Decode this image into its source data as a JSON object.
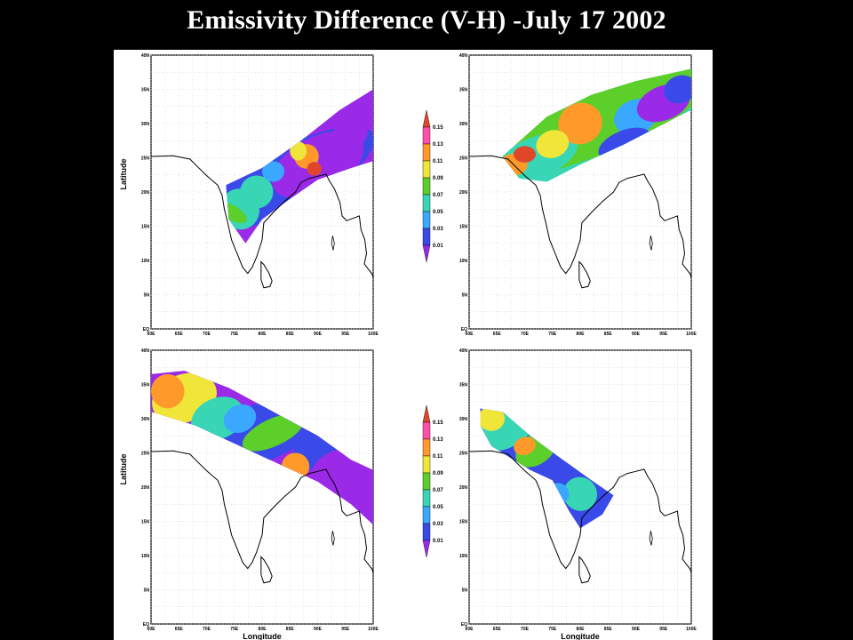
{
  "title": "Emissivity Difference (V-H) -July 17 2002",
  "axes": {
    "ylabel": "Latitude",
    "xlabel": "Longitude",
    "lat_ticks": [
      "EQ",
      "5N",
      "10N",
      "15N",
      "20N",
      "25N",
      "30N",
      "35N",
      "40N"
    ],
    "lon_ticks": [
      "60E",
      "65E",
      "70E",
      "75E",
      "80E",
      "85E",
      "90E",
      "95E",
      "100E"
    ],
    "lon_range": [
      60,
      100
    ],
    "lat_range": [
      0,
      40
    ]
  },
  "colorbar": {
    "labels": [
      "0.15",
      "0.13",
      "0.11",
      "0.09",
      "0.07",
      "0.05",
      "0.03",
      "0.01"
    ],
    "colors": [
      "#e0462a",
      "#ff4fa8",
      "#ff9a2a",
      "#f0e63a",
      "#5ccf2a",
      "#38d6b4",
      "#3aa8ff",
      "#3a4ae8",
      "#9a2ae8"
    ]
  },
  "panels": [
    {
      "id": "top-left",
      "shows_ylabel": true,
      "shows_xlabel": false
    },
    {
      "id": "top-right",
      "shows_ylabel": false,
      "shows_xlabel": false
    },
    {
      "id": "bottom-left",
      "shows_ylabel": true,
      "shows_xlabel": true
    },
    {
      "id": "bottom-right",
      "shows_ylabel": false,
      "shows_xlabel": true
    }
  ]
}
